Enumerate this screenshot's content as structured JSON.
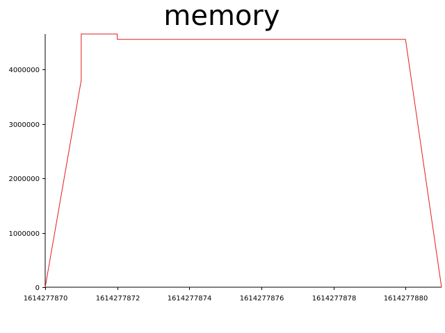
{
  "chart_data": {
    "type": "line",
    "title": "memory",
    "xlabel": "",
    "ylabel": "",
    "xlim": [
      1614277870,
      1614277881
    ],
    "ylim": [
      0,
      4650000
    ],
    "x_ticks": [
      1614277870,
      1614277872,
      1614277874,
      1614277876,
      1614277878,
      1614277880
    ],
    "x_tick_labels": [
      "1614277870",
      "1614277872",
      "1614277874",
      "1614277876",
      "1614277878",
      "1614277880"
    ],
    "y_ticks": [
      0,
      1000000,
      2000000,
      3000000,
      4000000
    ],
    "y_tick_labels": [
      "0",
      "1000000",
      "2000000",
      "3000000",
      "4000000"
    ],
    "grid": false,
    "series": [
      {
        "color": "#e41a1c",
        "points": [
          [
            1614277870,
            0
          ],
          [
            1614277871,
            3800000
          ],
          [
            1614277871,
            4650000
          ],
          [
            1614277872,
            4650000
          ],
          [
            1614277872,
            4550000
          ],
          [
            1614277880,
            4550000
          ],
          [
            1614277881,
            0
          ]
        ]
      }
    ]
  }
}
